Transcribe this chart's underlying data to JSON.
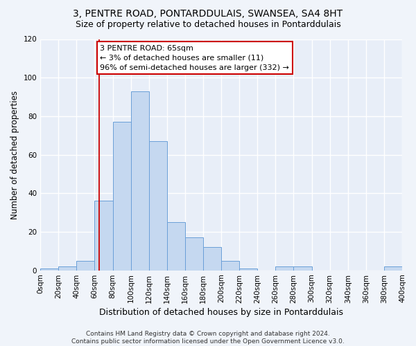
{
  "title": "3, PENTRE ROAD, PONTARDDULAIS, SWANSEA, SA4 8HT",
  "subtitle": "Size of property relative to detached houses in Pontarddulais",
  "xlabel": "Distribution of detached houses by size in Pontarddulais",
  "ylabel": "Number of detached properties",
  "footer_line1": "Contains HM Land Registry data © Crown copyright and database right 2024.",
  "footer_line2": "Contains public sector information licensed under the Open Government Licence v3.0.",
  "bin_edges": [
    0,
    20,
    40,
    60,
    80,
    100,
    120,
    140,
    160,
    180,
    200,
    220,
    240,
    260,
    280,
    300,
    320,
    340,
    360,
    380,
    400
  ],
  "bar_heights": [
    1,
    2,
    5,
    36,
    77,
    93,
    67,
    25,
    17,
    12,
    5,
    1,
    0,
    2,
    2,
    0,
    0,
    0,
    0,
    2
  ],
  "bar_color": "#c5d8f0",
  "bar_edge_color": "#6a9fd8",
  "background_color": "#f0f4fa",
  "plot_bg_color": "#e8eef8",
  "grid_color": "#ffffff",
  "ylim": [
    0,
    120
  ],
  "yticks": [
    0,
    20,
    40,
    60,
    80,
    100,
    120
  ],
  "property_size": 65,
  "property_line_color": "#cc0000",
  "annotation_line1": "3 PENTRE ROAD: 65sqm",
  "annotation_line2": "← 3% of detached houses are smaller (11)",
  "annotation_line3": "96% of semi-detached houses are larger (332) →",
  "annotation_box_color": "#ffffff",
  "annotation_box_edge_color": "#cc0000",
  "title_fontsize": 10,
  "subtitle_fontsize": 9,
  "xlabel_fontsize": 9,
  "ylabel_fontsize": 8.5,
  "tick_fontsize": 7.5,
  "annotation_fontsize": 8,
  "footer_fontsize": 6.5
}
